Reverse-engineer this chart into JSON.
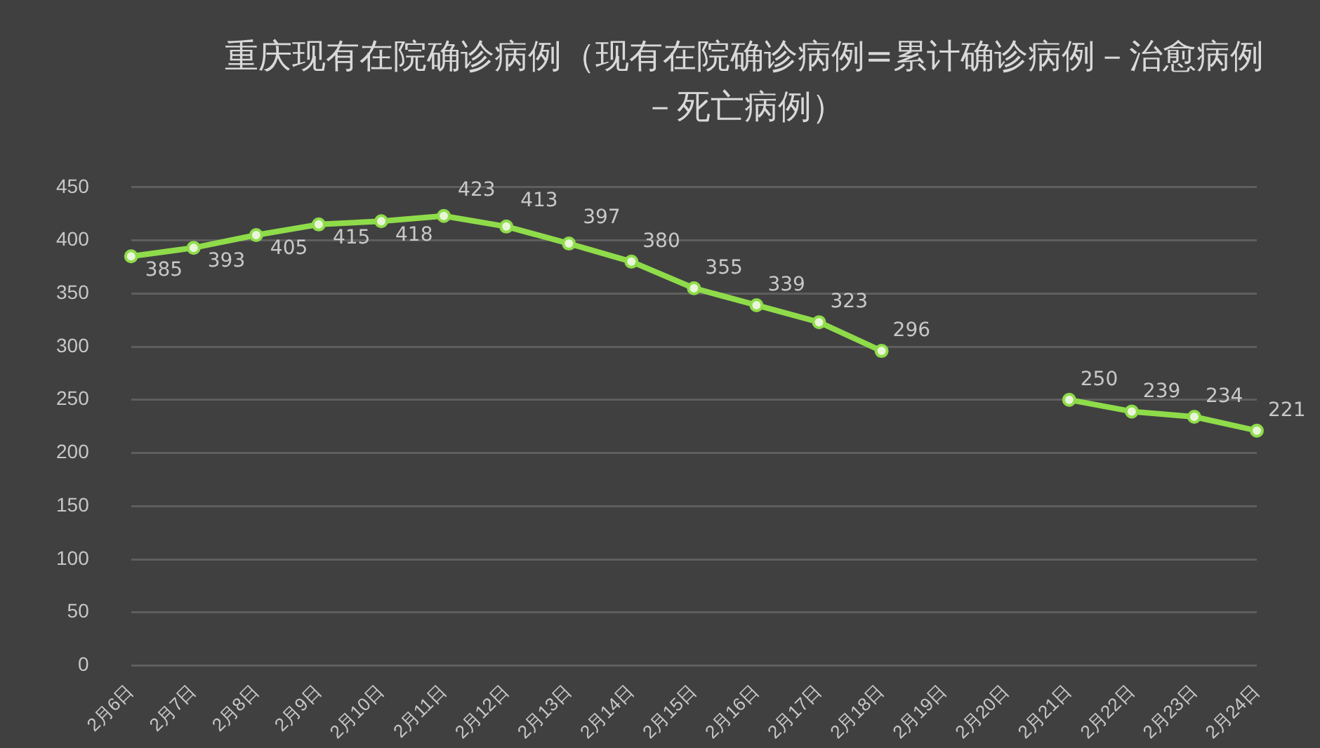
{
  "chart_data": {
    "type": "line",
    "title": "重庆现有在院确诊病例（现有在院确诊病例=累计确诊病例－治愈病例－死亡病例）",
    "categories": [
      "2月6日",
      "2月7日",
      "2月8日",
      "2月9日",
      "2月10日",
      "2月11日",
      "2月12日",
      "2月13日",
      "2月14日",
      "2月15日",
      "2月16日",
      "2月17日",
      "2月18日",
      "2月19日",
      "2月20日",
      "2月21日",
      "2月22日",
      "2月23日",
      "2月24日"
    ],
    "series": [
      {
        "color": "#8fdc4a",
        "values": [
          385,
          393,
          405,
          415,
          418,
          423,
          413,
          397,
          380,
          355,
          339,
          323,
          296,
          null,
          null,
          250,
          239,
          234,
          221
        ]
      }
    ],
    "ylim": [
      0,
      450
    ],
    "yticks": [
      0,
      50,
      100,
      150,
      200,
      250,
      300,
      350,
      400,
      450
    ],
    "grid": "y",
    "legend": false,
    "marker": "circle",
    "line_style": "solid",
    "data_labels": true
  }
}
